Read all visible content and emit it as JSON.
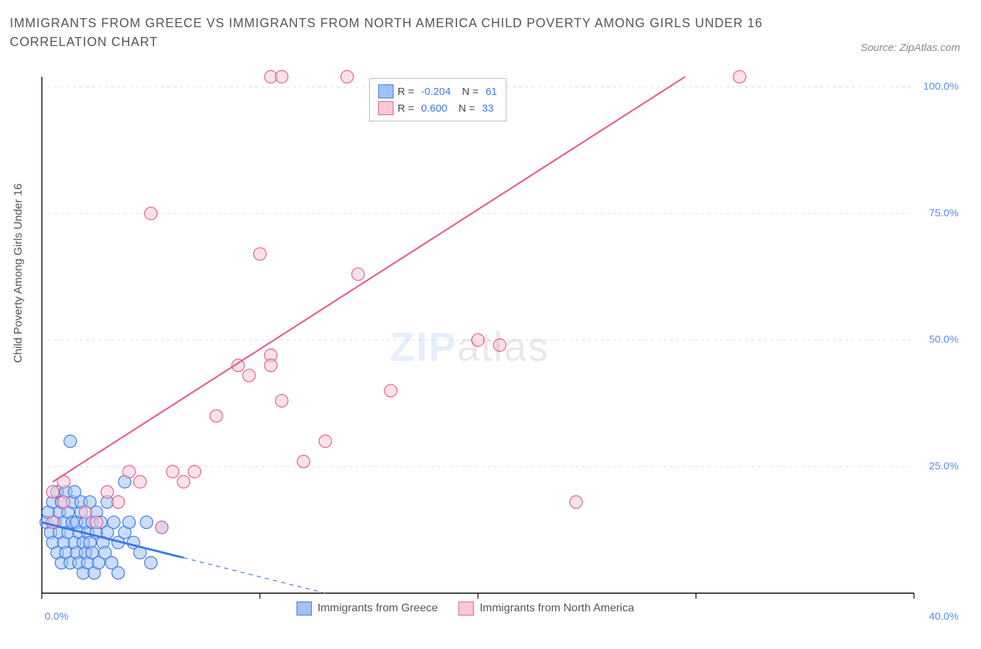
{
  "title": "IMMIGRANTS FROM GREECE VS IMMIGRANTS FROM NORTH AMERICA CHILD POVERTY AMONG GIRLS UNDER 16 CORRELATION CHART",
  "source": "Source: ZipAtlas.com",
  "ylabel": "Child Poverty Among Girls Under 16",
  "watermark_a": "ZIP",
  "watermark_b": "atlas",
  "chart": {
    "type": "scatter",
    "background_color": "#ffffff",
    "grid_color": "#dddddd",
    "axis_color": "#000000",
    "xlim": [
      0,
      40
    ],
    "ylim": [
      0,
      102
    ],
    "xticks": [
      0,
      10,
      20,
      30,
      40
    ],
    "xtick_labels": [
      "0.0%",
      "",
      "",
      "",
      "40.0%"
    ],
    "yticks": [
      25,
      50,
      75,
      100
    ],
    "ytick_labels": [
      "25.0%",
      "50.0%",
      "75.0%",
      "100.0%"
    ],
    "marker_radius": 9,
    "marker_stroke_width": 1.2,
    "series": [
      {
        "name": "Immigrants from Greece",
        "label": "Immigrants from Greece",
        "color_fill": "#9fc1f4",
        "color_stroke": "#3b78e7",
        "fill_opacity": 0.55,
        "R": "-0.204",
        "N": "61",
        "trend": {
          "x1": 0,
          "y1": 14,
          "x2": 13,
          "y2": 0,
          "dashed": false,
          "extend_dashed_to_x": 13,
          "color": "#3b78e7",
          "width": 2.2
        },
        "trend_dashed": {
          "x1": 0.5,
          "y1": 13.5,
          "x2": 13,
          "y2": 0,
          "color": "#3b78e7",
          "width": 1.2
        },
        "points": [
          [
            0.2,
            14
          ],
          [
            0.3,
            16
          ],
          [
            0.4,
            12
          ],
          [
            0.5,
            18
          ],
          [
            0.5,
            10
          ],
          [
            0.6,
            14
          ],
          [
            0.7,
            20
          ],
          [
            0.7,
            8
          ],
          [
            0.8,
            12
          ],
          [
            0.8,
            16
          ],
          [
            0.9,
            6
          ],
          [
            0.9,
            18
          ],
          [
            1.0,
            14
          ],
          [
            1.0,
            10
          ],
          [
            1.1,
            8
          ],
          [
            1.1,
            20
          ],
          [
            1.2,
            12
          ],
          [
            1.2,
            16
          ],
          [
            1.3,
            30
          ],
          [
            1.3,
            6
          ],
          [
            1.4,
            14
          ],
          [
            1.4,
            18
          ],
          [
            1.5,
            10
          ],
          [
            1.5,
            20
          ],
          [
            1.6,
            8
          ],
          [
            1.6,
            14
          ],
          [
            1.7,
            12
          ],
          [
            1.7,
            6
          ],
          [
            1.8,
            16
          ],
          [
            1.8,
            18
          ],
          [
            1.9,
            10
          ],
          [
            1.9,
            4
          ],
          [
            2.0,
            8
          ],
          [
            2.0,
            14
          ],
          [
            2.1,
            12
          ],
          [
            2.1,
            6
          ],
          [
            2.2,
            18
          ],
          [
            2.2,
            10
          ],
          [
            2.3,
            14
          ],
          [
            2.3,
            8
          ],
          [
            2.4,
            4
          ],
          [
            2.5,
            12
          ],
          [
            2.5,
            16
          ],
          [
            2.6,
            6
          ],
          [
            2.7,
            14
          ],
          [
            2.8,
            10
          ],
          [
            2.9,
            8
          ],
          [
            3.0,
            18
          ],
          [
            3.0,
            12
          ],
          [
            3.2,
            6
          ],
          [
            3.3,
            14
          ],
          [
            3.5,
            10
          ],
          [
            3.5,
            4
          ],
          [
            3.8,
            12
          ],
          [
            3.8,
            22
          ],
          [
            4.0,
            14
          ],
          [
            4.2,
            10
          ],
          [
            4.5,
            8
          ],
          [
            4.8,
            14
          ],
          [
            5.0,
            6
          ],
          [
            5.5,
            13
          ]
        ]
      },
      {
        "name": "Immigrants from North America",
        "label": "Immigrants from North America",
        "color_fill": "#f8c8d8",
        "color_stroke": "#e75a8d",
        "fill_opacity": 0.55,
        "R": "0.600",
        "N": "33",
        "trend": {
          "x1": 0.5,
          "y1": 22,
          "x2": 29.5,
          "y2": 102,
          "dashed": false,
          "color": "#e75a8d",
          "width": 2.2
        },
        "points": [
          [
            0.5,
            14
          ],
          [
            0.5,
            20
          ],
          [
            1.0,
            18
          ],
          [
            1.0,
            22
          ],
          [
            2.0,
            16
          ],
          [
            2.5,
            14
          ],
          [
            3.0,
            20
          ],
          [
            3.5,
            18
          ],
          [
            4.0,
            24
          ],
          [
            4.5,
            22
          ],
          [
            5.0,
            75
          ],
          [
            5.5,
            13
          ],
          [
            6.0,
            24
          ],
          [
            6.5,
            22
          ],
          [
            7.0,
            24
          ],
          [
            8.0,
            35
          ],
          [
            9.0,
            45
          ],
          [
            9.5,
            43
          ],
          [
            10.0,
            67
          ],
          [
            10.5,
            47
          ],
          [
            10.5,
            45
          ],
          [
            10.5,
            102
          ],
          [
            11.0,
            102
          ],
          [
            11.0,
            38
          ],
          [
            12.0,
            26
          ],
          [
            13.0,
            30
          ],
          [
            14.0,
            102
          ],
          [
            14.5,
            63
          ],
          [
            16.0,
            40
          ],
          [
            20.0,
            50
          ],
          [
            21.0,
            49
          ],
          [
            24.5,
            18
          ],
          [
            32.0,
            102
          ]
        ]
      }
    ]
  },
  "legend_box": {
    "row1": {
      "R_label": "R =",
      "N_label": "N ="
    },
    "R1": "-0.204",
    "N1": "61",
    "R2": "0.600",
    "N2": "33"
  },
  "bottom_legend": {
    "s1": "Immigrants from Greece",
    "s2": "Immigrants from North America"
  }
}
